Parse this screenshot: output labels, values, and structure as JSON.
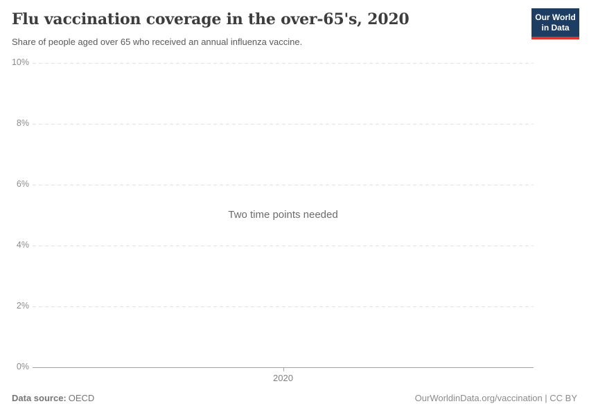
{
  "header": {
    "title": "Flu vaccination coverage in the over-65's, 2020",
    "subtitle": "Share of people aged over 65 who received an annual influenza vaccine.",
    "logo": {
      "line1": "Our World",
      "line2": "in Data",
      "bg_color": "#1d3d63",
      "bar_color": "#dc352b"
    }
  },
  "chart_data": {
    "type": "line",
    "title": "Flu vaccination coverage in the over-65's, 2020",
    "subtitle": "Share of people aged over 65 who received an annual influenza vaccine.",
    "message": "Two time points needed",
    "series": [],
    "x_ticks": [
      "2020"
    ],
    "y_ticks": [
      "0%",
      "2%",
      "4%",
      "6%",
      "8%",
      "10%"
    ],
    "ylim": [
      0,
      10
    ],
    "grid": true,
    "legend": "none",
    "colors": {
      "gridline": "#e3e3e3",
      "axis_line": "#a3a3a3",
      "tick_label": "#8c8c8c",
      "message_text": "#6b6b6b"
    }
  },
  "footer": {
    "source_label": "Data source:",
    "source_value": "OECD",
    "attribution": "OurWorldinData.org/vaccination | CC BY"
  }
}
